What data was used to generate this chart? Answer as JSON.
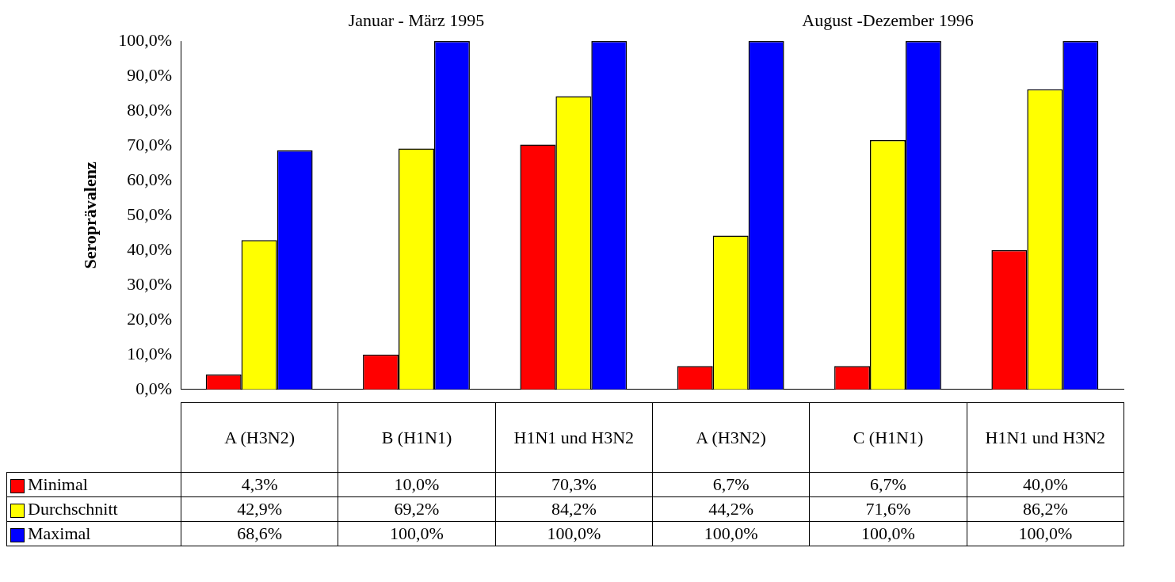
{
  "chart_data": {
    "type": "bar",
    "ylabel": "Seroprävalenz",
    "annotations": [
      "Januar - März 1995",
      "August -Dezember 1996"
    ],
    "categories": [
      "A (H3N2)",
      "B (H1N1)",
      "H1N1 und H3N2",
      "A (H3N2)",
      "C (H1N1)",
      "H1N1 und H3N2"
    ],
    "series": [
      {
        "name": "Minimal",
        "color": "#ff0000",
        "values": [
          4.3,
          10.0,
          70.3,
          6.7,
          6.7,
          40.0
        ],
        "value_labels": [
          "4,3%",
          "10,0%",
          "70,3%",
          "6,7%",
          "6,7%",
          "40,0%"
        ]
      },
      {
        "name": "Durchschnitt",
        "color": "#ffff00",
        "values": [
          42.9,
          69.2,
          84.2,
          44.2,
          71.6,
          86.2
        ],
        "value_labels": [
          "42,9%",
          "69,2%",
          "84,2%",
          "44,2%",
          "71,6%",
          "86,2%"
        ]
      },
      {
        "name": "Maximal",
        "color": "#0000ff",
        "values": [
          68.6,
          100.0,
          100.0,
          100.0,
          100.0,
          100.0
        ],
        "value_labels": [
          "68,6%",
          "100,0%",
          "100,0%",
          "100,0%",
          "100,0%",
          "100,0%"
        ]
      }
    ],
    "ylim": [
      0,
      100
    ],
    "yticks": [
      {
        "value": 0,
        "label": "0,0%"
      },
      {
        "value": 10,
        "label": "10,0%"
      },
      {
        "value": 20,
        "label": "20,0%"
      },
      {
        "value": 30,
        "label": "30,0%"
      },
      {
        "value": 40,
        "label": "40,0%"
      },
      {
        "value": 50,
        "label": "50,0%"
      },
      {
        "value": 60,
        "label": "60,0%"
      },
      {
        "value": 70,
        "label": "70,0%"
      },
      {
        "value": 80,
        "label": "80,0%"
      },
      {
        "value": 90,
        "label": "90,0%"
      },
      {
        "value": 100,
        "label": "100,0%"
      }
    ],
    "grid": false,
    "legend": "bottom left"
  }
}
